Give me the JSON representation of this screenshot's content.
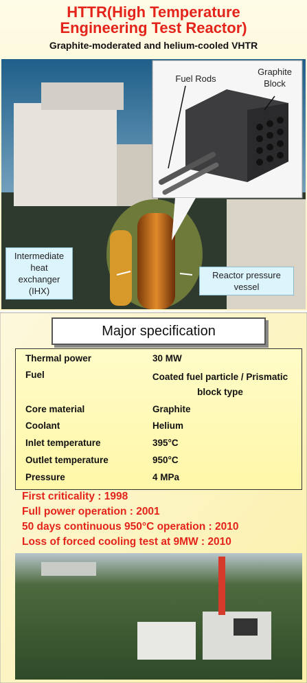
{
  "header": {
    "title": "HTTR(High Temperature Engineering Test Reactor)",
    "subtitle": "Graphite-moderated and helium-cooled VHTR"
  },
  "illustration": {
    "labels": [
      "Fuel Rods",
      "Graphite Block",
      "Intermediate heat exchanger (IHX)",
      "Reactor pressure vessel"
    ]
  },
  "specification": {
    "title": "Major specification",
    "rows": [
      [
        "Thermal power",
        "30 MW"
      ],
      [
        "Fuel",
        "Coated fuel particle / Prismatic block type"
      ],
      [
        "Core material",
        "Graphite"
      ],
      [
        "Coolant",
        "Helium"
      ],
      [
        "Inlet temperature",
        "395°C"
      ],
      [
        "Outlet temperature",
        "950°C"
      ],
      [
        "Pressure",
        "4 MPa"
      ]
    ]
  },
  "milestones": [
    "First criticality : 1998",
    "Full power operation : 2001",
    "50 days continuous 950°C operation : 2010",
    "Loss of forced cooling test at 9MW : 2010"
  ]
}
